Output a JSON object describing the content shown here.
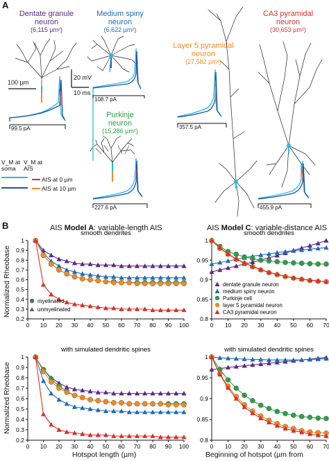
{
  "panel_a": {
    "label": "A",
    "neurons": [
      {
        "title": "Dentate granule\nneuron",
        "area": "(6,115 µm²)",
        "color": "#5b2a86",
        "current": "99.5 pA"
      },
      {
        "title": "Medium spiny\nneuron",
        "area": "(6,622 µm²)",
        "color": "#1f6bb5",
        "current": "108.7 pA"
      },
      {
        "title": "Purkinje\nneuron",
        "area": "(15,286 µm²)",
        "color": "#2e9e46",
        "current": "227.6 pA"
      },
      {
        "title": "Layer 5 pyramidal\nneuron",
        "area": "(27,582 µm²)",
        "color": "#f08a24",
        "current": "357.5 pA"
      },
      {
        "title": "CA3 pyramidal\nneuron",
        "area": "(30,653 µm²)",
        "color": "#d7302b",
        "current": "455.9 pA"
      }
    ],
    "scale_bar": "100 µm",
    "scale_mv": "20 mV",
    "scale_ms": "10 ms",
    "legend": {
      "vm_soma": "V_M at\nsoma",
      "vm_ais": "V_M at\nAIS",
      "ais0": "AIS at 0 µm",
      "ais10": "AIS at 10 µm",
      "colors": {
        "soma_cyan": "#29b7e6",
        "soma_blue": "#1f4fa5",
        "ais_red": "#d7302b",
        "ais_orange": "#f08a24"
      }
    }
  },
  "panel_b": {
    "label": "B",
    "model_a_title": {
      "pre": "AIS ",
      "bold": "Model A",
      "post": ": variable-length AIS"
    },
    "model_c_title": {
      "pre": "AIS ",
      "bold": "Model C",
      "post": ": variable-distance AIS"
    },
    "sub_smooth": "smooth dendrites",
    "sub_spines": "with simulated dendritic spines",
    "ylabel": "Normalized Rheobase",
    "xlabel_a": "Hotspot length (µm)",
    "xlabel_c": "Beginning of hotspot (µm from",
    "legend_a": [
      "myelinated",
      "unmyelinated"
    ],
    "legend_c": [
      "dentate granule neuron",
      "medium spiny neuron",
      "Purkinje cell",
      "layer 5 pyramidal neuron",
      "CA3 pyramidal neuron"
    ]
  },
  "chart_data": [
    {
      "type": "line",
      "title": "smooth dendrites",
      "xlabel": "",
      "ylabel": "Normalized Rheobase",
      "xlim": [
        0,
        100
      ],
      "ylim": [
        0.2,
        1
      ],
      "x_ticks": [
        0,
        10,
        20,
        30,
        40,
        50,
        60,
        70,
        80,
        90,
        100
      ],
      "y_ticks": [
        0.2,
        0.3,
        0.4,
        0.5,
        0.6,
        0.7,
        0.8,
        0.9,
        1
      ],
      "x": [
        5,
        10,
        15,
        20,
        25,
        30,
        35,
        40,
        45,
        50,
        55,
        60,
        65,
        70,
        75,
        80,
        85,
        90,
        95,
        100
      ],
      "series": [
        {
          "color": "#5b2a86",
          "marker": "triangle",
          "values": [
            1,
            0.9,
            0.85,
            0.81,
            0.79,
            0.77,
            0.76,
            0.76,
            0.75,
            0.75,
            0.75,
            0.74,
            0.74,
            0.74,
            0.74,
            0.74,
            0.74,
            0.74,
            0.74,
            0.74
          ]
        },
        {
          "color": "#1f6bb5",
          "marker": "triangle",
          "values": [
            1,
            0.87,
            0.79,
            0.74,
            0.7,
            0.68,
            0.66,
            0.65,
            0.64,
            0.63,
            0.63,
            0.62,
            0.62,
            0.62,
            0.62,
            0.62,
            0.62,
            0.62,
            0.62,
            0.62
          ]
        },
        {
          "color": "#2e9e46",
          "marker": "circle",
          "values": [
            1,
            0.85,
            0.76,
            0.7,
            0.66,
            0.63,
            0.61,
            0.6,
            0.59,
            0.58,
            0.58,
            0.57,
            0.57,
            0.57,
            0.57,
            0.57,
            0.57,
            0.57,
            0.57,
            0.57
          ]
        },
        {
          "color": "#f08a24",
          "marker": "circle",
          "values": [
            1,
            0.85,
            0.76,
            0.7,
            0.66,
            0.63,
            0.61,
            0.6,
            0.59,
            0.58,
            0.57,
            0.57,
            0.57,
            0.56,
            0.56,
            0.56,
            0.56,
            0.56,
            0.56,
            0.56
          ]
        },
        {
          "color": "#d7302b",
          "marker": "triangle",
          "values": [
            1,
            0.55,
            0.45,
            0.4,
            0.37,
            0.35,
            0.34,
            0.33,
            0.32,
            0.31,
            0.31,
            0.3,
            0.3,
            0.3,
            0.3,
            0.29,
            0.29,
            0.29,
            0.29,
            0.29
          ]
        }
      ]
    },
    {
      "type": "line",
      "title": "with simulated dendritic spines",
      "xlabel": "Hotspot length (µm)",
      "ylabel": "Normalized Rheobase",
      "xlim": [
        0,
        100
      ],
      "ylim": [
        0.2,
        1
      ],
      "x_ticks": [
        0,
        10,
        20,
        30,
        40,
        50,
        60,
        70,
        80,
        90,
        100
      ],
      "y_ticks": [
        0.2,
        0.3,
        0.4,
        0.5,
        0.6,
        0.7,
        0.8,
        0.9,
        1
      ],
      "x": [
        5,
        10,
        15,
        20,
        25,
        30,
        35,
        40,
        45,
        50,
        55,
        60,
        65,
        70,
        75,
        80,
        85,
        90,
        95,
        100
      ],
      "series": [
        {
          "color": "#5b2a86",
          "marker": "triangle",
          "values": [
            1,
            0.88,
            0.8,
            0.75,
            0.71,
            0.69,
            0.68,
            0.67,
            0.66,
            0.66,
            0.65,
            0.65,
            0.65,
            0.65,
            0.65,
            0.65,
            0.65,
            0.65,
            0.65,
            0.65
          ]
        },
        {
          "color": "#1f6bb5",
          "marker": "triangle",
          "values": [
            1,
            0.77,
            0.65,
            0.59,
            0.55,
            0.52,
            0.51,
            0.5,
            0.49,
            0.48,
            0.48,
            0.48,
            0.47,
            0.47,
            0.47,
            0.47,
            0.47,
            0.47,
            0.47,
            0.47
          ]
        },
        {
          "color": "#2e9e46",
          "marker": "circle",
          "values": [
            1,
            0.88,
            0.79,
            0.72,
            0.67,
            0.63,
            0.61,
            0.59,
            0.58,
            0.57,
            0.56,
            0.56,
            0.55,
            0.55,
            0.55,
            0.55,
            0.55,
            0.55,
            0.55,
            0.55
          ]
        },
        {
          "color": "#f08a24",
          "marker": "circle",
          "values": [
            1,
            0.86,
            0.76,
            0.7,
            0.66,
            0.63,
            0.61,
            0.59,
            0.58,
            0.57,
            0.56,
            0.56,
            0.55,
            0.55,
            0.55,
            0.55,
            0.55,
            0.54,
            0.54,
            0.54
          ]
        },
        {
          "color": "#d7302b",
          "marker": "triangle",
          "values": [
            1,
            0.45,
            0.35,
            0.3,
            0.28,
            0.27,
            0.26,
            0.25,
            0.25,
            0.25,
            0.24,
            0.24,
            0.24,
            0.24,
            0.24,
            0.24,
            0.23,
            0.23,
            0.23,
            0.23
          ]
        }
      ]
    },
    {
      "type": "line",
      "title": "smooth dendrites",
      "xlabel": "",
      "ylabel": "",
      "xlim": [
        0,
        70
      ],
      "ylim": [
        0.8,
        1
      ],
      "x_ticks": [
        0,
        10,
        20,
        30,
        40,
        50,
        60,
        70
      ],
      "y_ticks": [
        0.8,
        0.85,
        0.9,
        0.95,
        1
      ],
      "x": [
        0,
        5,
        10,
        15,
        20,
        25,
        30,
        35,
        40,
        45,
        50,
        55,
        60,
        65,
        70
      ],
      "series": [
        {
          "color": "#5b2a86",
          "marker": "triangle",
          "values": [
            0.92,
            0.925,
            0.93,
            0.935,
            0.94,
            0.945,
            0.95,
            0.956,
            0.962,
            0.968,
            0.975,
            0.981,
            0.987,
            0.993,
            1
          ]
        },
        {
          "color": "#1f6bb5",
          "marker": "triangle",
          "values": [
            0.94,
            0.944,
            0.948,
            0.952,
            0.956,
            0.96,
            0.963,
            0.966,
            0.969,
            0.972,
            0.974,
            0.976,
            0.978,
            0.98,
            0.982
          ]
        },
        {
          "color": "#2e9e46",
          "marker": "circle",
          "values": [
            1,
            0.985,
            0.972,
            0.965,
            0.958,
            0.954,
            0.95,
            0.948,
            0.946,
            0.944,
            0.943,
            0.942,
            0.941,
            0.94,
            0.94
          ]
        },
        {
          "color": "#f08a24",
          "marker": "circle",
          "values": [
            1,
            0.98,
            0.965,
            0.952,
            0.942,
            0.933,
            0.925,
            0.918,
            0.913,
            0.908,
            0.904,
            0.901,
            0.898,
            0.896,
            0.895
          ]
        },
        {
          "color": "#d7302b",
          "marker": "triangle",
          "values": [
            1,
            0.982,
            0.966,
            0.953,
            0.943,
            0.934,
            0.926,
            0.919,
            0.914,
            0.909,
            0.905,
            0.902,
            0.899,
            0.897,
            0.895
          ]
        }
      ]
    },
    {
      "type": "line",
      "title": "with simulated dendritic spines",
      "xlabel": "Beginning of hotspot (µm from",
      "ylabel": "",
      "xlim": [
        0,
        70
      ],
      "ylim": [
        0.8,
        1
      ],
      "x_ticks": [
        0,
        10,
        20,
        30,
        40,
        50,
        60,
        70
      ],
      "y_ticks": [
        0.8,
        0.85,
        0.9,
        0.95,
        1
      ],
      "x": [
        0,
        5,
        10,
        15,
        20,
        25,
        30,
        35,
        40,
        45,
        50,
        55,
        60,
        65,
        70
      ],
      "series": [
        {
          "color": "#5b2a86",
          "marker": "triangle",
          "values": [
            0.97,
            0.972,
            0.975,
            0.977,
            0.979,
            0.981,
            0.983,
            0.985,
            0.987,
            0.989,
            0.991,
            0.993,
            0.995,
            0.997,
            0.999
          ]
        },
        {
          "color": "#1f6bb5",
          "marker": "triangle",
          "values": [
            1,
            0.998,
            0.997,
            0.996,
            0.995,
            0.994,
            0.994,
            0.993,
            0.993,
            0.993,
            0.993,
            0.993,
            0.994,
            0.995,
            0.996
          ]
        },
        {
          "color": "#2e9e46",
          "marker": "circle",
          "values": [
            1,
            0.97,
            0.945,
            0.925,
            0.908,
            0.895,
            0.884,
            0.876,
            0.869,
            0.864,
            0.86,
            0.857,
            0.855,
            0.853,
            0.852
          ]
        },
        {
          "color": "#f08a24",
          "marker": "circle",
          "values": [
            1,
            0.96,
            0.93,
            0.905,
            0.885,
            0.87,
            0.858,
            0.848,
            0.84,
            0.833,
            0.828,
            0.823,
            0.82,
            0.818,
            0.817
          ]
        },
        {
          "color": "#d7302b",
          "marker": "triangle",
          "values": [
            1,
            0.958,
            0.926,
            0.9,
            0.88,
            0.865,
            0.853,
            0.843,
            0.835,
            0.828,
            0.823,
            0.819,
            0.815,
            0.812,
            0.81
          ]
        }
      ]
    }
  ]
}
